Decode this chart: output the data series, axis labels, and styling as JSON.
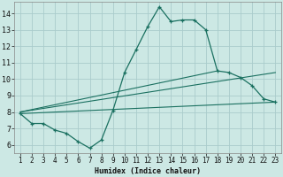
{
  "title": "",
  "xlabel": "Humidex (Indice chaleur)",
  "xlim": [
    0.5,
    23.5
  ],
  "ylim": [
    5.5,
    14.7
  ],
  "xticks": [
    1,
    2,
    3,
    4,
    5,
    6,
    7,
    8,
    9,
    10,
    11,
    12,
    13,
    14,
    15,
    16,
    17,
    18,
    19,
    20,
    21,
    22,
    23
  ],
  "yticks": [
    6,
    7,
    8,
    9,
    10,
    11,
    12,
    13,
    14
  ],
  "bg_color": "#cce8e4",
  "grid_color": "#aacccc",
  "line_color": "#1a7060",
  "line1_x": [
    1,
    2,
    3,
    4,
    5,
    6,
    7,
    8,
    9,
    10,
    11,
    12,
    13,
    14,
    15,
    16,
    17,
    18,
    19,
    20,
    21,
    22,
    23
  ],
  "line1_y": [
    7.9,
    7.3,
    7.3,
    6.9,
    6.7,
    6.2,
    5.8,
    6.3,
    8.1,
    10.4,
    11.8,
    13.2,
    14.4,
    13.5,
    13.6,
    13.6,
    13.0,
    10.5,
    10.4,
    10.1,
    9.6,
    8.8,
    8.6
  ],
  "line2_x": [
    1,
    23
  ],
  "line2_y": [
    8.0,
    10.4
  ],
  "line3_x": [
    1,
    18
  ],
  "line3_y": [
    8.0,
    10.5
  ],
  "line4_x": [
    1,
    23
  ],
  "line4_y": [
    7.9,
    8.6
  ]
}
